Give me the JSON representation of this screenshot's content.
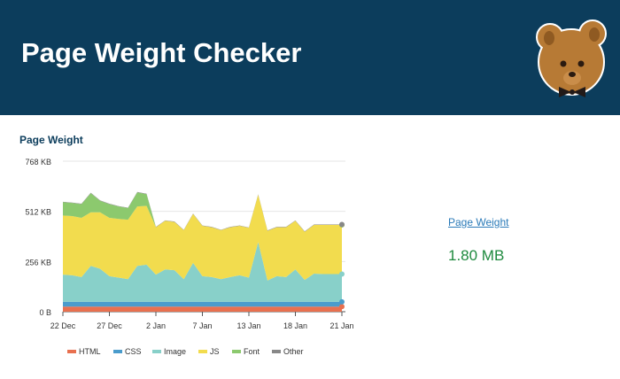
{
  "header": {
    "title": "Page Weight Checker",
    "logo": "bear-with-bowtie-logo"
  },
  "summary": {
    "label": "Page Weight",
    "value": "1.80 MB"
  },
  "chart_data": {
    "type": "area",
    "stacked": true,
    "title": "Page Weight",
    "y_unit": "KB",
    "ylim": [
      0,
      768
    ],
    "y_ticks": [
      {
        "value": 0,
        "label": "0 B"
      },
      {
        "value": 256,
        "label": "256 KB"
      },
      {
        "value": 512,
        "label": "512 KB"
      },
      {
        "value": 768,
        "label": "768 KB"
      }
    ],
    "x_ticks": [
      {
        "index": 0,
        "label": "22 Dec"
      },
      {
        "index": 5,
        "label": "27 Dec"
      },
      {
        "index": 10,
        "label": "2 Jan"
      },
      {
        "index": 15,
        "label": "7 Jan"
      },
      {
        "index": 20,
        "label": "13 Jan"
      },
      {
        "index": 25,
        "label": "18 Jan"
      },
      {
        "index": 30,
        "label": "21 Jan"
      }
    ],
    "grid": true,
    "legend": "bottom",
    "series": [
      {
        "name": "HTML",
        "color": "#e8704f",
        "values": [
          26,
          26,
          26,
          26,
          26,
          26,
          26,
          26,
          26,
          26,
          26,
          26,
          26,
          26,
          26,
          26,
          26,
          26,
          26,
          26,
          26,
          26,
          26,
          26,
          26,
          26,
          26,
          26,
          26,
          26,
          26
        ]
      },
      {
        "name": "CSS",
        "color": "#4a9ccc",
        "values": [
          24,
          24,
          24,
          24,
          24,
          24,
          24,
          24,
          24,
          24,
          24,
          24,
          24,
          24,
          24,
          24,
          24,
          24,
          24,
          24,
          24,
          24,
          24,
          24,
          24,
          24,
          24,
          24,
          24,
          24,
          24
        ]
      },
      {
        "name": "Image",
        "color": "#88d0c9",
        "values": [
          139,
          136,
          127,
          184,
          169,
          131,
          124,
          116,
          184,
          190,
          139,
          166,
          162,
          116,
          199,
          131,
          127,
          116,
          127,
          136,
          124,
          305,
          109,
          131,
          127,
          166,
          112,
          144,
          142,
          142,
          142
        ]
      },
      {
        "name": "JS",
        "color": "#f2dc4e",
        "values": [
          302,
          302,
          302,
          273,
          288,
          298,
          299,
          303,
          303,
          300,
          242,
          248,
          246,
          250,
          250,
          257,
          254,
          250,
          254,
          252,
          254,
          242,
          254,
          250,
          254,
          248,
          246,
          249,
          251,
          251,
          251
        ]
      },
      {
        "name": "Font",
        "color": "#8cc96e",
        "values": [
          68,
          67,
          70,
          98,
          59,
          70,
          64,
          60,
          72,
          60,
          0,
          0,
          0,
          0,
          0,
          0,
          0,
          0,
          0,
          0,
          0,
          0,
          0,
          0,
          0,
          0,
          0,
          0,
          0,
          0,
          0
        ]
      },
      {
        "name": "Other",
        "color": "#888888",
        "values": [
          2,
          2,
          2,
          2,
          2,
          2,
          2,
          2,
          2,
          2,
          2,
          2,
          2,
          2,
          2,
          2,
          2,
          2,
          2,
          2,
          2,
          2,
          2,
          2,
          2,
          2,
          2,
          2,
          2,
          2,
          2
        ]
      }
    ]
  }
}
